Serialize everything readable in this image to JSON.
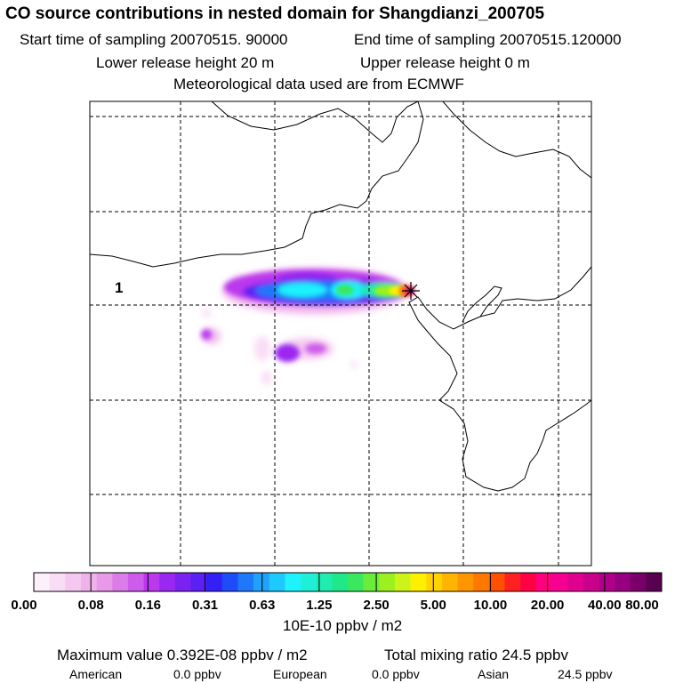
{
  "chart_data": {
    "type": "heatmap",
    "title": "CO  source contributions in nested domain for Shangdianzi_200705",
    "subtitle": {
      "start_time": "Start time of sampling 20070515. 90000",
      "end_time": "End time of sampling 20070515.120000",
      "lower_height": "Lower release height   20 m",
      "upper_height": "Upper release height    0 m",
      "met_source": "Meteorological data used are from ECMWF"
    },
    "region_label": "1",
    "colorbar": {
      "tick_labels": [
        "0.00",
        "0.08",
        "0.16",
        "0.31",
        "0.63",
        "1.25",
        "2.50",
        "5.00",
        "10.00",
        "20.00",
        "40.00",
        "80.00"
      ],
      "unit": "10E-10 ppbv / m2",
      "colors": [
        "#fdf0fb",
        "#f9dcf5",
        "#f5c8f0",
        "#f0b2eb",
        "#e89ae9",
        "#dc7ce8",
        "#cd5cea",
        "#bb38ee",
        "#9a28f0",
        "#7a22f2",
        "#5a20f4",
        "#3320f6",
        "#1e4cf8",
        "#1e78fa",
        "#1ea2fb",
        "#1ecafc",
        "#1ef2fd",
        "#1ef0d8",
        "#1eecb0",
        "#1ee888",
        "#3ae860",
        "#6aec3a",
        "#9cf01e",
        "#ccf41a",
        "#fff000",
        "#ffd200",
        "#ffb400",
        "#ff9600",
        "#ff7800",
        "#ff5000",
        "#ff2020",
        "#ff0044",
        "#ff0080",
        "#f50090",
        "#e00090",
        "#c8008c",
        "#b00088",
        "#960080",
        "#780068",
        "#5a0050"
      ]
    },
    "stats": {
      "max_value": "Maximum value  0.392E-08 ppbv / m2",
      "total_mixing": "Total mixing ratio       24.5 ppbv",
      "american_label": "American",
      "american_value": "0.0 ppbv",
      "european_label": "European",
      "european_value": "0.0 ppbv",
      "asian_label": "Asian",
      "asian_value": "24.5 ppbv"
    },
    "grid": true,
    "colors": {
      "background": "#ffffff",
      "coastline": "#000000",
      "receptor_marker": "#000000"
    }
  }
}
